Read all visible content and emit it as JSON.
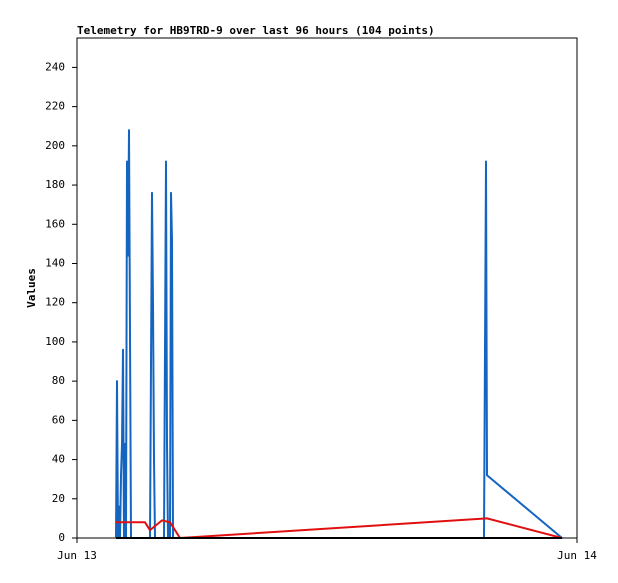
{
  "chart_data": {
    "type": "line",
    "title": "Telemetry for HB9TRD-9 over last 96 hours (104 points)",
    "y_label": "Values",
    "xlim": [
      0,
      1
    ],
    "xticks": [
      {
        "value": 0,
        "label": "Jun 13"
      },
      {
        "value": 1,
        "label": "Jun 14"
      }
    ],
    "ylim": [
      0,
      255
    ],
    "yticks": [
      0,
      20,
      40,
      60,
      80,
      100,
      120,
      140,
      160,
      180,
      200,
      220,
      240
    ],
    "grid": false,
    "series": [
      {
        "color": "#1565c0",
        "x": [
          0.078,
          0.08,
          0.082,
          0.084,
          0.086,
          0.088,
          0.09,
          0.092,
          0.094,
          0.096,
          0.098,
          0.1,
          0.102,
          0.104,
          0.106,
          0.108,
          0.146,
          0.148,
          0.15,
          0.152,
          0.154,
          0.156,
          0.174,
          0.176,
          0.178,
          0.18,
          0.182,
          0.184,
          0.186,
          0.188,
          0.19,
          0.192,
          0.814,
          0.816,
          0.818,
          0.82,
          0.97
        ],
        "values": [
          0,
          80,
          0,
          16,
          0,
          32,
          48,
          96,
          0,
          48,
          0,
          192,
          144,
          208,
          104,
          0,
          0,
          88,
          176,
          120,
          40,
          0,
          0,
          96,
          192,
          48,
          0,
          8,
          0,
          176,
          152,
          0,
          0,
          96,
          192,
          32,
          0
        ]
      },
      {
        "color": "#e01010",
        "x": [
          0.078,
          0.136,
          0.146,
          0.17,
          0.186,
          0.206,
          0.82,
          0.97
        ],
        "values": [
          8,
          8,
          4,
          9,
          8,
          0,
          10,
          0
        ]
      },
      {
        "color": "#000000",
        "x": [
          0.078,
          0.97
        ],
        "values": [
          0,
          0
        ]
      }
    ]
  }
}
